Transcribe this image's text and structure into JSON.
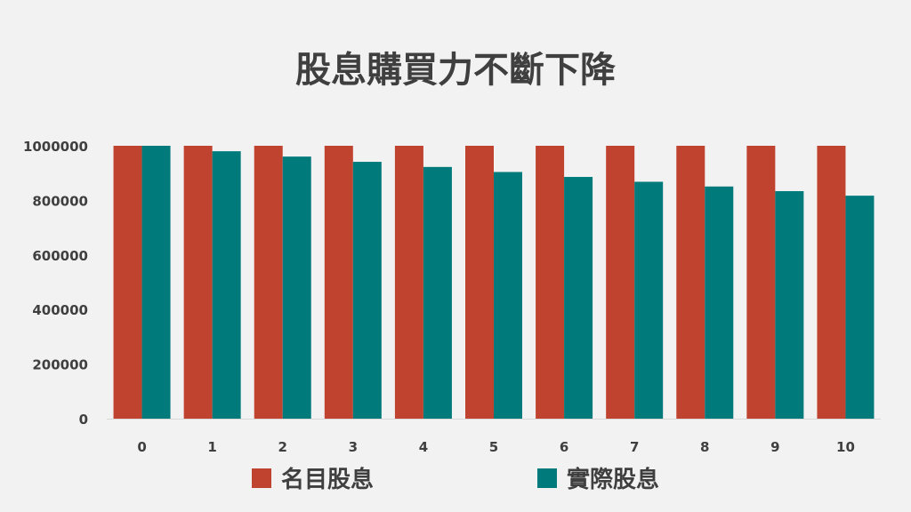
{
  "chart_data": {
    "type": "bar",
    "title": "股息購買力不斷下降",
    "categories": [
      "0",
      "1",
      "2",
      "3",
      "4",
      "5",
      "6",
      "7",
      "8",
      "9",
      "10"
    ],
    "series": [
      {
        "name": "名目股息",
        "color": "#c0432f",
        "values": [
          1000000,
          1000000,
          1000000,
          1000000,
          1000000,
          1000000,
          1000000,
          1000000,
          1000000,
          1000000,
          1000000
        ]
      },
      {
        "name": "實際股息",
        "color": "#007a7b",
        "values": [
          1000000,
          980000,
          960400,
          941192,
          922368,
          903921,
          885842,
          868125,
          850763,
          833748,
          817073
        ]
      }
    ],
    "ylim": [
      0,
      1000000
    ],
    "yticks": [
      "0",
      "200000",
      "400000",
      "600000",
      "800000",
      "1000000"
    ],
    "grid": false,
    "legend": "bottom"
  }
}
